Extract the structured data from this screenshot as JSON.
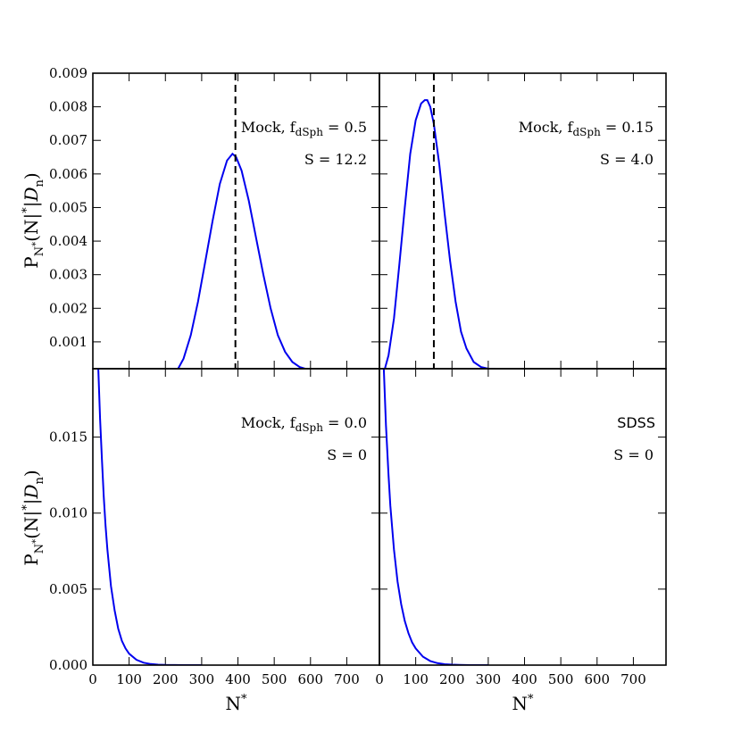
{
  "chart_data": [
    {
      "type": "line",
      "panel": "top-left",
      "annotation": {
        "prefix": "Mock, f",
        "sub": "dSph",
        "suffix": " = 0.5",
        "second": "S = 12.2"
      },
      "xlim": [
        0,
        790
      ],
      "ylim": [
        0.0002,
        0.009
      ],
      "yticks": [
        0.001,
        0.002,
        0.003,
        0.004,
        0.005,
        0.006,
        0.007,
        0.008,
        0.009
      ],
      "ytick_labels": [
        "0.001",
        "0.002",
        "0.003",
        "0.004",
        "0.005",
        "0.006",
        "0.007",
        "0.008",
        "0.009"
      ],
      "vline_x": 393,
      "series": [
        {
          "color": "#0000ee",
          "x": [
            235,
            250,
            270,
            290,
            310,
            330,
            350,
            370,
            385,
            395,
            410,
            430,
            450,
            470,
            490,
            510,
            530,
            550,
            570,
            585
          ],
          "y": [
            0.0002,
            0.0005,
            0.0012,
            0.0022,
            0.0034,
            0.0046,
            0.0057,
            0.0064,
            0.0066,
            0.0065,
            0.0061,
            0.0052,
            0.0041,
            0.003,
            0.002,
            0.0012,
            0.0007,
            0.0004,
            0.00025,
            0.0002
          ]
        }
      ]
    },
    {
      "type": "line",
      "panel": "top-right",
      "annotation": {
        "prefix": "Mock, f",
        "sub": "dSph",
        "suffix": " = 0.15",
        "second": "S = 4.0"
      },
      "xlim": [
        0,
        790
      ],
      "ylim": [
        0.0002,
        0.009
      ],
      "yticks": [
        0.001,
        0.002,
        0.003,
        0.004,
        0.005,
        0.006,
        0.007,
        0.008,
        0.009
      ],
      "vline_x": 150,
      "series": [
        {
          "color": "#0000ee",
          "x": [
            15,
            25,
            40,
            55,
            70,
            85,
            100,
            115,
            125,
            132,
            140,
            150,
            165,
            180,
            195,
            210,
            225,
            240,
            260,
            280,
            300,
            320
          ],
          "y": [
            0.0002,
            0.0006,
            0.0017,
            0.0033,
            0.005,
            0.0066,
            0.0076,
            0.0081,
            0.0082,
            0.0082,
            0.008,
            0.0075,
            0.0063,
            0.0048,
            0.0034,
            0.0022,
            0.0013,
            0.0008,
            0.0004,
            0.00025,
            0.0002,
            0.0002
          ]
        }
      ]
    },
    {
      "type": "line",
      "panel": "bottom-left",
      "annotation": {
        "prefix": "Mock, f",
        "sub": "dSph",
        "suffix": " = 0.0",
        "second": "S = 0"
      },
      "xlim": [
        0,
        790
      ],
      "xticks": [
        0,
        100,
        200,
        300,
        400,
        500,
        600,
        700
      ],
      "xtick_labels": [
        "0",
        "100",
        "200",
        "300",
        "400",
        "500",
        "600",
        "700"
      ],
      "xlabel": "N*",
      "ylim": [
        0,
        0.0195
      ],
      "yticks": [
        0.0,
        0.005,
        0.01,
        0.015
      ],
      "ytick_labels": [
        "0.000",
        "0.005",
        "0.010",
        "0.015"
      ],
      "series": [
        {
          "color": "#0000ee",
          "x": [
            15,
            20,
            25,
            30,
            35,
            40,
            50,
            60,
            70,
            80,
            90,
            100,
            120,
            140,
            160,
            180,
            200,
            250,
            300
          ],
          "y": [
            0.0195,
            0.0162,
            0.0135,
            0.0111,
            0.0092,
            0.0076,
            0.0052,
            0.0036,
            0.0024,
            0.0016,
            0.0011,
            0.00075,
            0.00035,
            0.00016,
            7e-05,
            3e-05,
            1e-05,
            0.0,
            0.0
          ]
        }
      ]
    },
    {
      "type": "line",
      "panel": "bottom-right",
      "annotation": {
        "label": "SDSS",
        "second": "S = 0"
      },
      "xlim": [
        0,
        790
      ],
      "xticks": [
        0,
        100,
        200,
        300,
        400,
        500,
        600,
        700
      ],
      "xtick_labels": [
        "0",
        "100",
        "200",
        "300",
        "400",
        "500",
        "600",
        "700"
      ],
      "xlabel": "N*",
      "ylim": [
        0,
        0.0195
      ],
      "series": [
        {
          "color": "#0000ee",
          "x": [
            12,
            18,
            25,
            30,
            40,
            50,
            60,
            70,
            80,
            90,
            100,
            120,
            140,
            160,
            180,
            200,
            220,
            250,
            300
          ],
          "y": [
            0.0195,
            0.0158,
            0.0125,
            0.0105,
            0.0076,
            0.0055,
            0.004,
            0.0029,
            0.0021,
            0.0015,
            0.0011,
            0.00055,
            0.00027,
            0.00013,
            6e-05,
            3e-05,
            1e-05,
            0.0,
            0.0
          ]
        }
      ]
    }
  ],
  "ylabel": {
    "p": "P",
    "sub": "N*",
    "body": "(N*|",
    "d": "D",
    "dsub": "n",
    "close": ")"
  }
}
